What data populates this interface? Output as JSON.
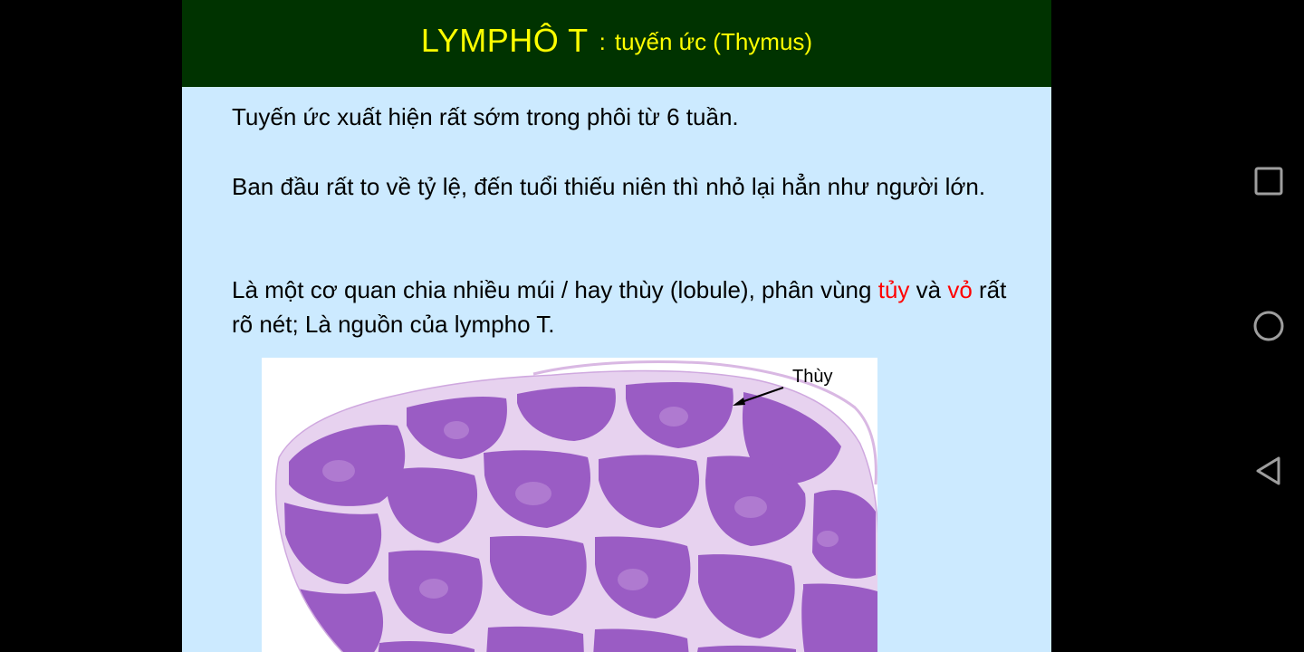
{
  "slide": {
    "title_main": "LYMPHÔ T",
    "title_separator": ":",
    "title_sub": "tuyến ức (Thymus)",
    "paragraph1": "Tuyến ức xuất hiện rất sớm trong phôi từ 6 tuần.",
    "paragraph2": "Ban đầu rất to về tỷ lệ, đến tuổi thiếu niên thì nhỏ lại hẳn như người lớn.",
    "paragraph3_part1": "Là một cơ quan chia nhiều múi / hay thùy (lobule), phân vùng ",
    "paragraph3_red1": "tủy",
    "paragraph3_part2": " và ",
    "paragraph3_red2": "vỏ",
    "paragraph3_part3": " rất rõ nét; Là nguồn của lympho T.",
    "figure_label": "Thùy"
  },
  "navigation": {
    "recent_icon": "square-icon",
    "home_icon": "circle-icon",
    "back_icon": "triangle-back-icon"
  },
  "colors": {
    "header_bg": "#003300",
    "title_color": "#ffff00",
    "slide_bg": "#cceaff",
    "highlight": "#ff0000",
    "tissue": "#9a5cc4"
  }
}
